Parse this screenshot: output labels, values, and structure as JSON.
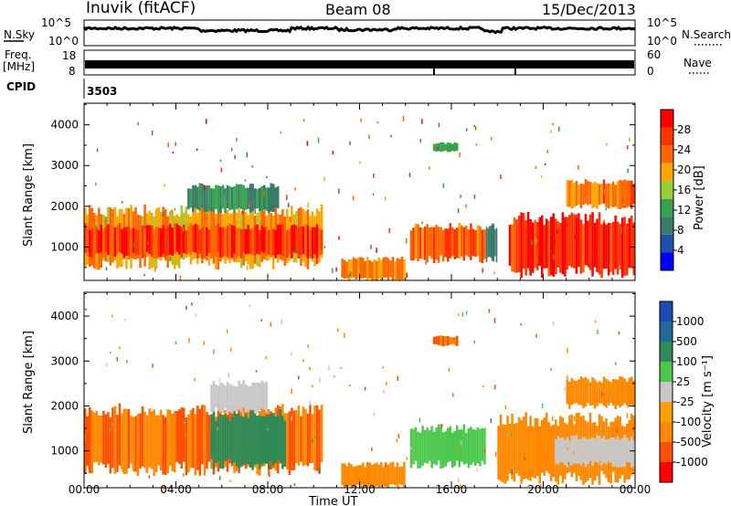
{
  "header": {
    "station": "Inuvik (fitACF)",
    "beam": "Beam 08",
    "date": "15/Dec/2013"
  },
  "noise_panel": {
    "left_label": "N.Sky",
    "right_label": "N.Search",
    "tick_top": "10^5",
    "tick_bottom": "10^0"
  },
  "freq_panel": {
    "left_label_1": "Freq.",
    "left_label_2": "[MHz]",
    "right_label": "Nave",
    "left_tick_top": "18",
    "left_tick_bottom": "8",
    "right_tick_top": "60",
    "right_tick_bottom": "0"
  },
  "cpid": {
    "label": "CPID",
    "value": "3503"
  },
  "colors": {
    "power_scale": [
      "#0000ff",
      "#1f4fa8",
      "#3a7a6a",
      "#36a24a",
      "#9acd32",
      "#ffa500",
      "#ff6600",
      "#ff3300",
      "#ff0000"
    ],
    "velocity_scale": [
      "#1c4bb5",
      "#1f6a9a",
      "#2e8b57",
      "#4cc94c",
      "#c8c8c8",
      "#ffa000",
      "#ff8800",
      "#ff5000",
      "#ff0000"
    ]
  },
  "chart_data": [
    {
      "type": "heatmap",
      "name": "power-panel",
      "ylabel": "Slant Range [km]",
      "ylim": [
        180,
        4530
      ],
      "yticks": [
        "1000",
        "2000",
        "3000",
        "4000"
      ],
      "xlim": [
        "00:00",
        "24:00"
      ],
      "colorbar_label": "Power [dB]",
      "colorbar_ticks": [
        "4",
        "8",
        "12",
        "16",
        "20",
        "24",
        "28"
      ],
      "colorbar_range": [
        0,
        32
      ],
      "regions": [
        {
          "t0": 0.0,
          "t1": 10.4,
          "r0": 600,
          "r1": 1900,
          "value": 20
        },
        {
          "t0": 0.0,
          "t1": 10.4,
          "r0": 800,
          "r1": 1500,
          "value": 27
        },
        {
          "t0": 4.5,
          "t1": 8.5,
          "r0": 1900,
          "r1": 2500,
          "value": 10
        },
        {
          "t0": 11.2,
          "t1": 14.0,
          "r0": 200,
          "r1": 700,
          "value": 22
        },
        {
          "t0": 14.2,
          "t1": 17.5,
          "r0": 700,
          "r1": 1500,
          "value": 24
        },
        {
          "t0": 15.2,
          "t1": 16.3,
          "r0": 3350,
          "r1": 3550,
          "value": 12
        },
        {
          "t0": 17.5,
          "t1": 18.0,
          "r0": 700,
          "r1": 1500,
          "value": 8
        },
        {
          "t0": 18.5,
          "t1": 24.0,
          "r0": 400,
          "r1": 1700,
          "value": 29
        },
        {
          "t0": 21.0,
          "t1": 24.0,
          "r0": 2000,
          "r1": 2600,
          "value": 22
        }
      ]
    },
    {
      "type": "heatmap",
      "name": "velocity-panel",
      "ylabel": "Slant Range [km]",
      "xlabel": "Time UT",
      "ylim": [
        180,
        4530
      ],
      "yticks": [
        "1000",
        "2000",
        "3000",
        "4000"
      ],
      "x": [
        "00:00",
        "04:00",
        "08:00",
        "12:00",
        "16:00",
        "20:00",
        "00:00"
      ],
      "colorbar_label": "Velocity [m s⁻¹]",
      "colorbar_ticks": [
        "1000",
        "500",
        "100",
        "25",
        "-25",
        "-100",
        "-500",
        "-1000"
      ],
      "regions": [
        {
          "t0": 0.0,
          "t1": 10.4,
          "r0": 600,
          "r1": 1900,
          "value": -300
        },
        {
          "t0": 5.5,
          "t1": 8.8,
          "r0": 700,
          "r1": 1800,
          "value": 80
        },
        {
          "t0": 5.5,
          "t1": 8.0,
          "r0": 1900,
          "r1": 2500,
          "value": 0
        },
        {
          "t0": 11.2,
          "t1": 14.0,
          "r0": 200,
          "r1": 700,
          "value": -200
        },
        {
          "t0": 14.2,
          "t1": 17.5,
          "r0": 700,
          "r1": 1500,
          "value": 30
        },
        {
          "t0": 15.2,
          "t1": 16.3,
          "r0": 3350,
          "r1": 3550,
          "value": -300
        },
        {
          "t0": 18.0,
          "t1": 24.0,
          "r0": 400,
          "r1": 1700,
          "value": -250
        },
        {
          "t0": 20.5,
          "t1": 24.0,
          "r0": 700,
          "r1": 1300,
          "value": 0
        },
        {
          "t0": 21.0,
          "t1": 24.0,
          "r0": 2000,
          "r1": 2600,
          "value": -200
        }
      ]
    }
  ]
}
